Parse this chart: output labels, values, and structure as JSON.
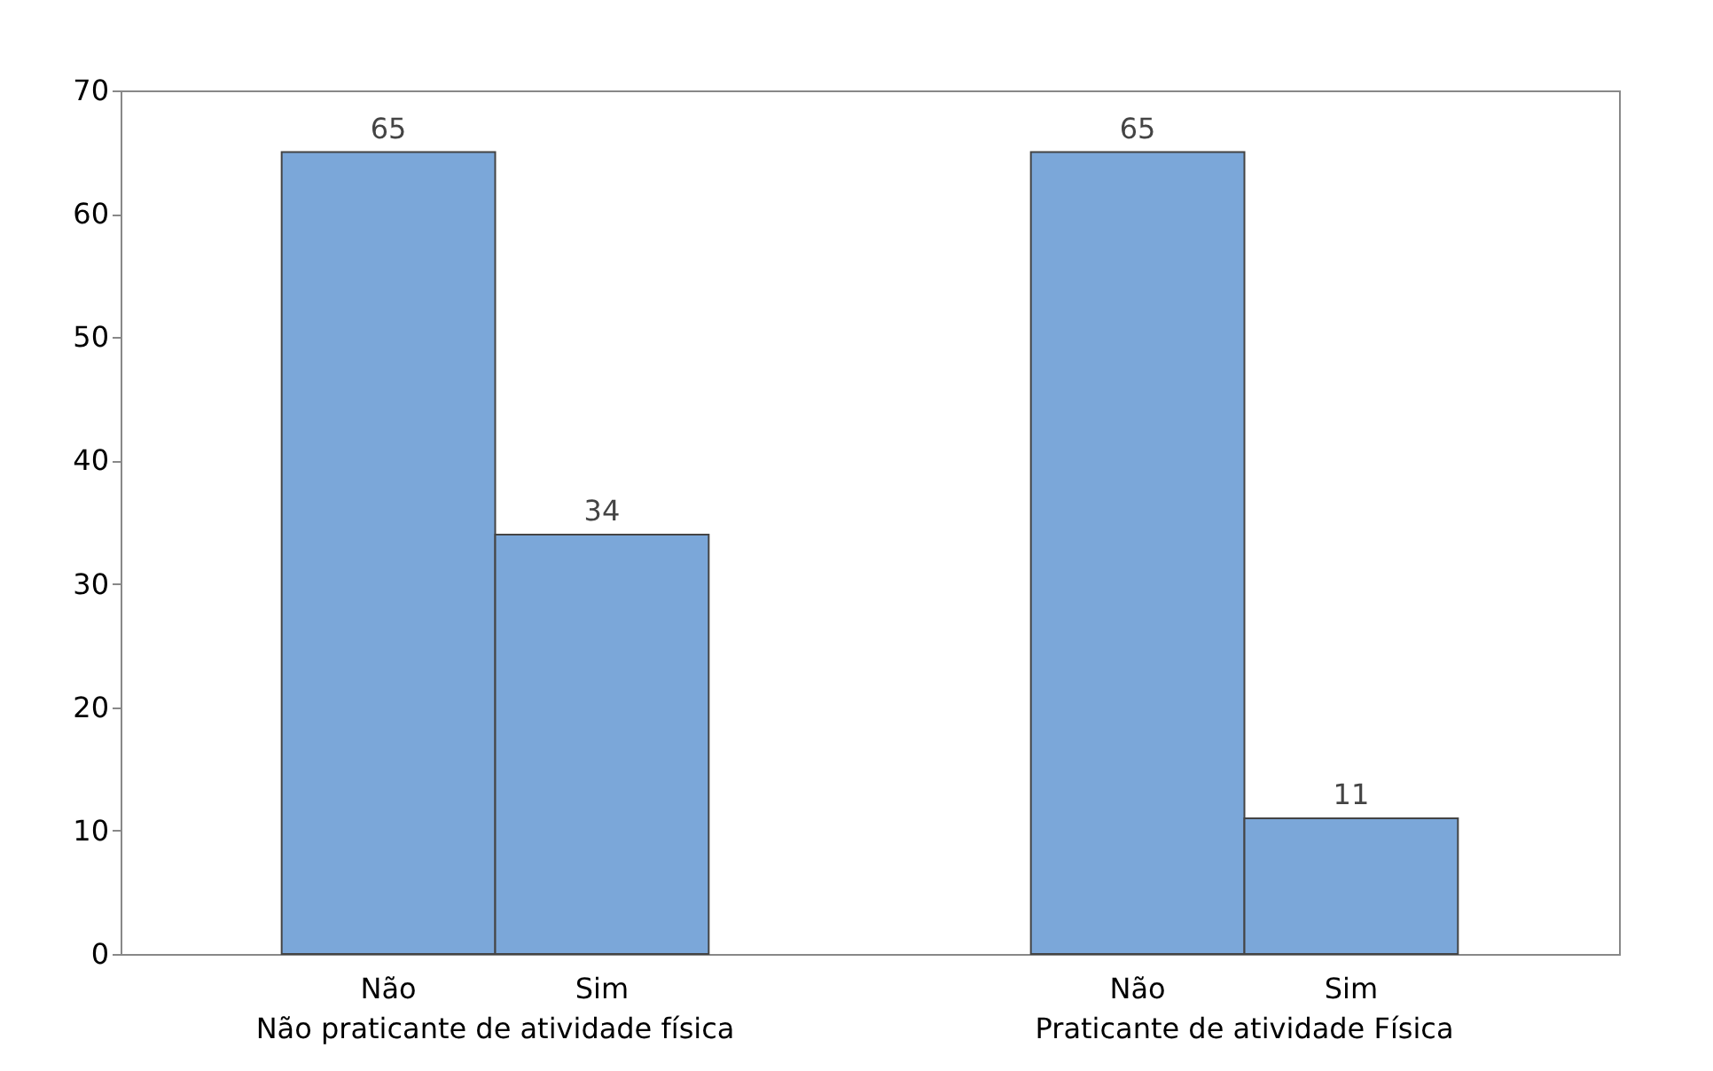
{
  "chart_data": {
    "type": "bar",
    "categories": [
      "Não praticante de atividade física",
      "Praticante de atividade Física"
    ],
    "series": [
      {
        "name": "Não",
        "color": "#7ba7d9",
        "values": [
          65,
          65
        ]
      },
      {
        "name": "Sim",
        "color": "#7ba7d9",
        "values": [
          34,
          11
        ]
      }
    ],
    "ylim": [
      0,
      70
    ],
    "yticks": [
      0,
      10,
      20,
      30,
      40,
      50,
      60,
      70
    ],
    "grid": false,
    "data_labels": true
  }
}
